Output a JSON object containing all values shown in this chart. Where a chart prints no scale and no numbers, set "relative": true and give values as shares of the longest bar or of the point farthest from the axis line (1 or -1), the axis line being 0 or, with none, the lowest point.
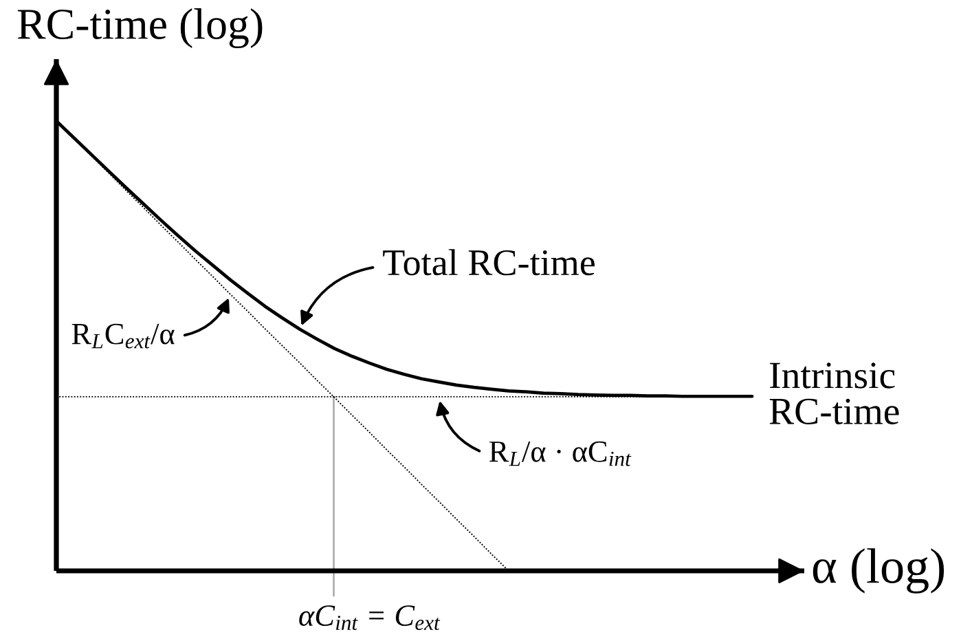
{
  "chart_data": {
    "type": "line",
    "relative": true,
    "xlabel": "α (log)",
    "ylabel": "RC-time (log)",
    "categories": [
      null,
      null,
      null,
      null,
      null,
      null,
      null,
      null,
      null,
      null,
      null,
      null,
      null,
      null,
      null,
      null,
      null,
      null,
      null,
      null,
      null,
      null,
      null,
      null,
      null,
      null,
      null,
      null,
      null,
      null,
      null,
      null,
      null,
      null,
      null,
      null,
      null,
      null,
      null,
      null,
      null,
      null,
      null,
      null
    ],
    "series": [
      {
        "color": "#000000",
        "line_style": "solid",
        "values": [
          1.0,
          0.963,
          0.926,
          0.889,
          0.852,
          0.816,
          0.78,
          0.745,
          0.711,
          0.679,
          0.647,
          0.617,
          0.588,
          0.562,
          0.537,
          0.515,
          0.494,
          0.477,
          0.462,
          0.448,
          0.437,
          0.427,
          0.42,
          0.413,
          0.408,
          0.404,
          0.4,
          0.398,
          0.395,
          0.394,
          0.392,
          0.391,
          0.39,
          0.39,
          0.389,
          0.389,
          0.388,
          0.388,
          0.388,
          0.388,
          0.388,
          null,
          null,
          null
        ]
      },
      {
        "color": "#000000",
        "line_style": "dotted",
        "values": [
          1.0,
          0.962,
          0.923,
          0.885,
          0.846,
          0.808,
          0.769,
          0.731,
          0.692,
          0.654,
          0.615,
          0.577,
          0.538,
          0.5,
          0.462,
          0.423,
          0.385,
          0.346,
          0.308,
          0.269,
          0.231,
          0.192,
          0.154,
          0.115,
          0.077,
          0.038,
          0.0,
          null,
          null,
          null,
          null,
          null,
          null,
          null,
          null,
          null,
          null,
          null,
          null,
          null,
          null,
          null,
          null,
          null
        ]
      },
      {
        "color": "#000000",
        "line_style": "dotted",
        "values": [
          0.387,
          0.387,
          0.387,
          0.387,
          0.387,
          0.387,
          0.387,
          0.387,
          0.387,
          0.387,
          0.387,
          0.387,
          0.387,
          0.387,
          0.387,
          0.387,
          0.387,
          0.387,
          0.387,
          0.387,
          0.387,
          0.387,
          0.387,
          0.387,
          0.387,
          0.387,
          0.387,
          0.387,
          0.387,
          0.387,
          0.387,
          0.387,
          0.387,
          0.387,
          0.387,
          0.387,
          0.387,
          0.387,
          0.387,
          0.387,
          0.387,
          null,
          null,
          null
        ]
      }
    ],
    "annotations": [
      "Total RC-time",
      "R$_{L}$C$_{ext}$/α",
      "R$_{L}$/α · αC$_{int}$",
      "Intrinsic\nRC-time",
      "αC$_{int}$ = C$_{ext}$"
    ]
  }
}
